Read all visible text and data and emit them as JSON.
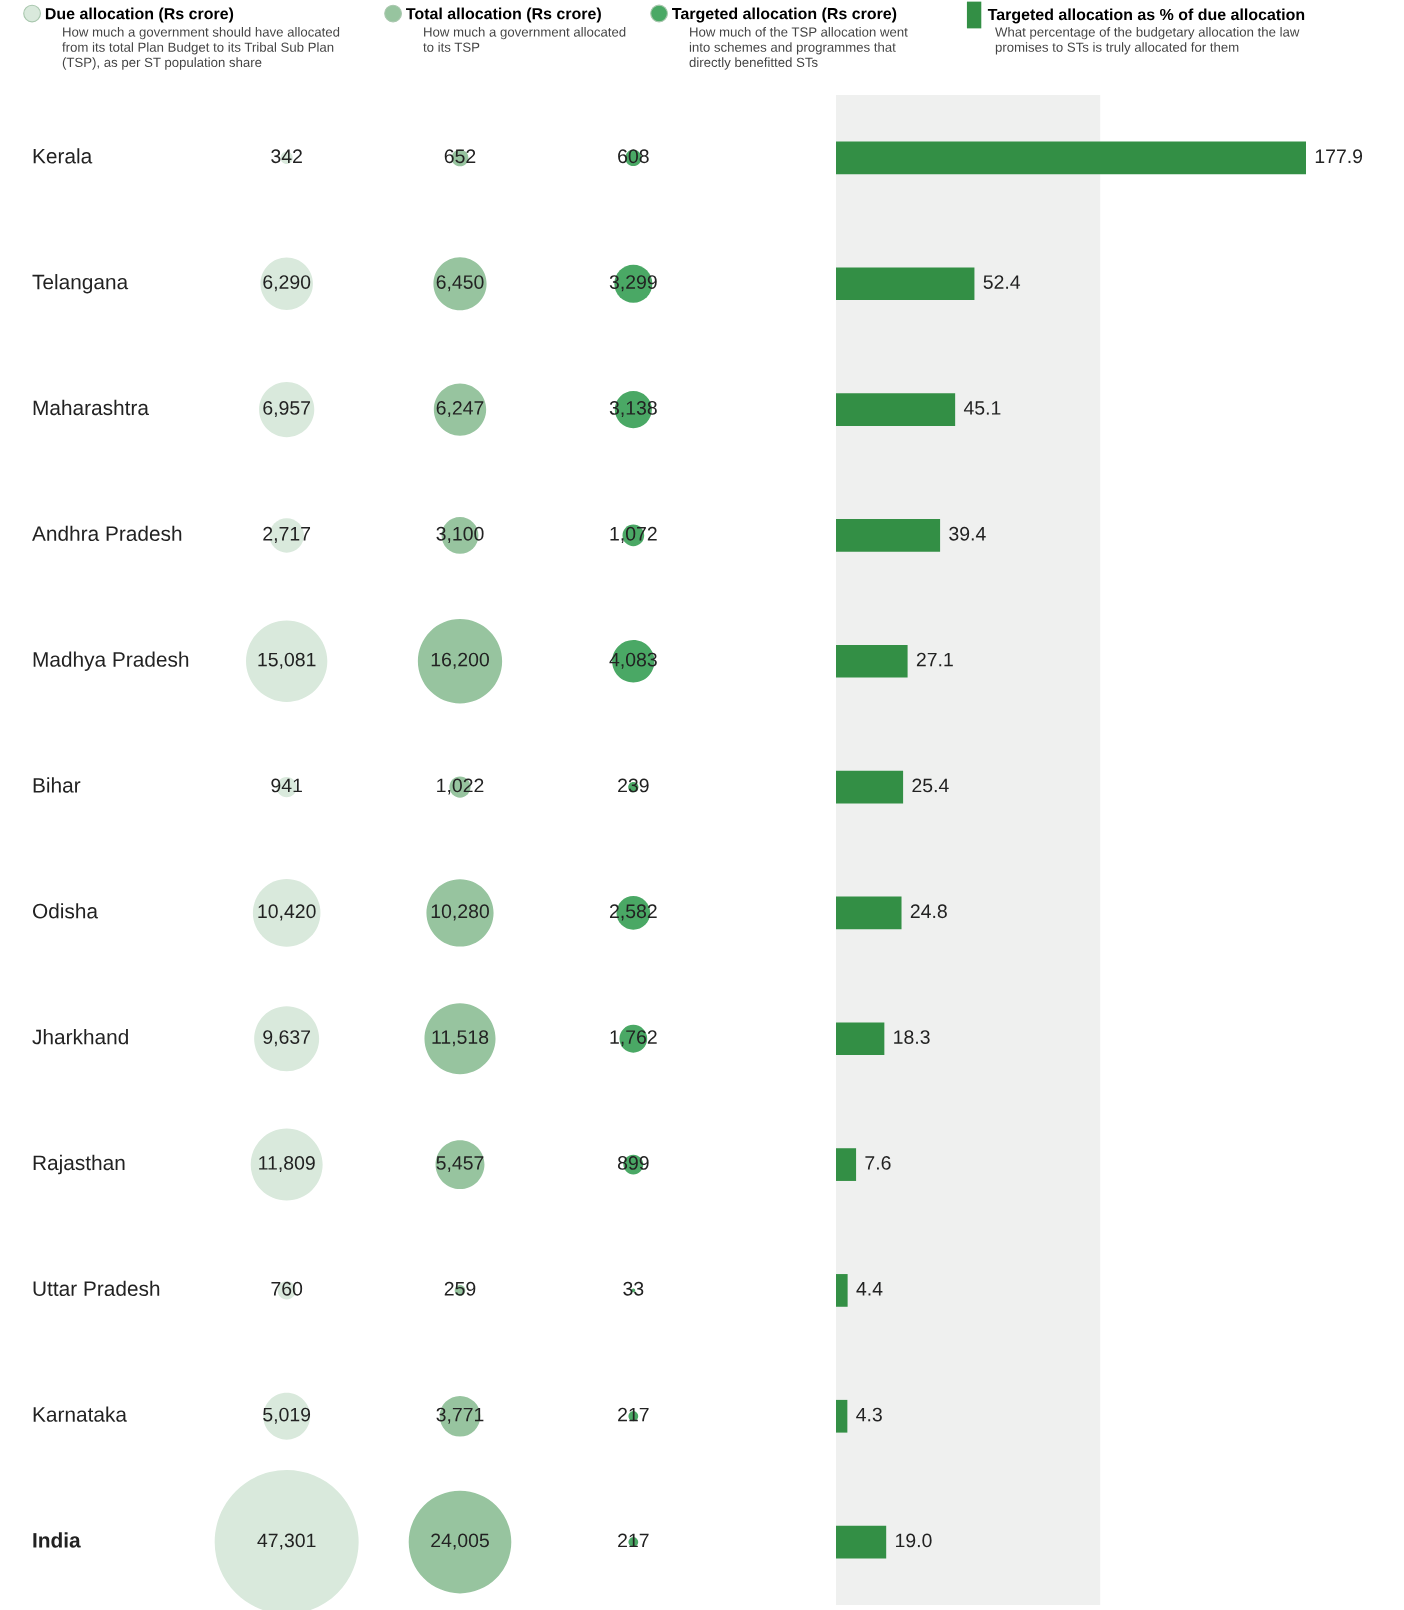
{
  "chart_data": [
    {
      "type": "other",
      "categories": [
        "Kerala",
        "Telangana",
        "Maharashtra",
        "Andhra Pradesh",
        "Madhya Pradesh",
        "Bihar",
        "Odisha",
        "Jharkhand",
        "Rajasthan",
        "Uttar Pradesh",
        "Karnataka",
        "India"
      ],
      "series": [
        {
          "name": "Due allocation (Rs crore)",
          "color": "#d9e9dc",
          "values": [
            342,
            6290,
            6957,
            2717,
            15081,
            941,
            10420,
            9637,
            11809,
            760,
            5019,
            47301
          ],
          "value_labels": [
            "342",
            "6,290",
            "6,957",
            "2,717",
            "15,081",
            "941",
            "10,420",
            "9,637",
            "11,809",
            "760",
            "5,019",
            "47,301"
          ]
        },
        {
          "name": "Total allocation (Rs crore)",
          "color": "#97c49f",
          "values": [
            652,
            6450,
            6247,
            3100,
            16200,
            1022,
            10280,
            11518,
            5457,
            259,
            3771,
            24005
          ],
          "value_labels": [
            "652",
            "6,450",
            "6,247",
            "3,100",
            "16,200",
            "1,022",
            "10,280",
            "11,518",
            "5,457",
            "259",
            "3,771",
            "24,005"
          ]
        },
        {
          "name": "Targeted allocation (Rs crore)",
          "color": "#4aa865",
          "values": [
            608,
            3299,
            3138,
            1072,
            4083,
            239,
            2582,
            1762,
            899,
            33,
            217,
            217
          ],
          "value_labels": [
            "608",
            "3,299",
            "3,138",
            "1,072",
            "4,083",
            "239",
            "2,582",
            "1,762",
            "899",
            "33",
            "217",
            "217"
          ]
        }
      ],
      "annotations": [
        "How much a government should have allocated\nfrom its total Plan Budget to its Tribal Sub Plan\n(TSP), as per ST population share",
        "How much a government allocated\nto its TSP",
        "How much of the TSP allocation went\ninto schemes and programmes that\ndirectly benefitted STs"
      ],
      "legend": "top"
    },
    {
      "type": "bar",
      "orientation": "horizontal",
      "categories": [
        null,
        null,
        null,
        null,
        null,
        null,
        null,
        null,
        null,
        null,
        null,
        null
      ],
      "series": [
        {
          "name": "Targeted allocation as % of due allocation",
          "color": "#338f45",
          "values": [
            177.9,
            52.4,
            45.1,
            39.4,
            27.1,
            25.4,
            24.8,
            18.3,
            7.6,
            4.4,
            4.3,
            19.0
          ],
          "value_labels": [
            "177.9",
            "52.4",
            "45.1",
            "39.4",
            "27.1",
            "25.4",
            "24.8",
            "18.3",
            "7.6",
            "4.4",
            "4.3",
            "19.0"
          ]
        }
      ],
      "subtitle": "What percentage of the budgetary allocation the law\npromises to STs is truly allocated for them",
      "bands": [
        {
          "axis": "x",
          "from": 0,
          "to": 100,
          "color": "#eff0ef"
        }
      ],
      "legend": "top"
    }
  ]
}
